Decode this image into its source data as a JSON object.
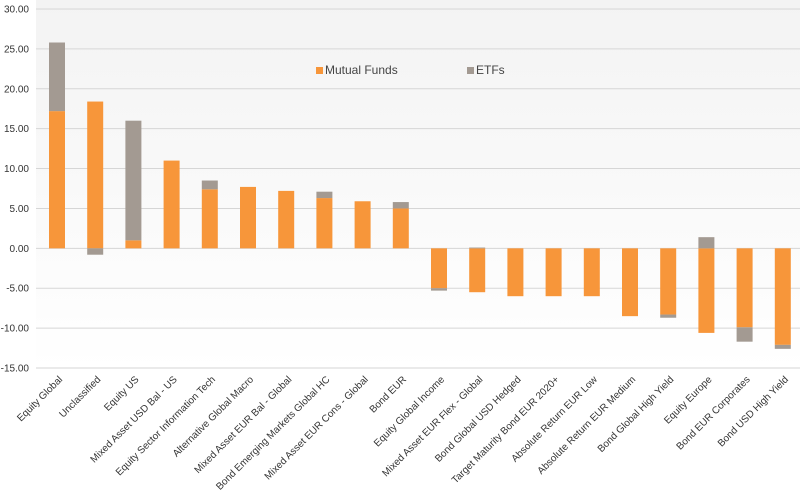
{
  "colors": {
    "mutual_funds": "#f7963a",
    "etfs": "#a39a92",
    "grid": "#d6d6d6",
    "plot_top": "#f3f3f3",
    "plot_bottom": "#ffffff"
  },
  "chart_data": {
    "type": "bar",
    "stacked": true,
    "categories": [
      "Equity Global",
      "Unclassified",
      "Equity US",
      "Mixed Asset USD Bal - US",
      "Equity Sector Information Tech",
      "Alternative Global Macro",
      "Mixed Asset EUR Bal - Global",
      "Bond Emerging Markets Global HC",
      "Mixed Asset EUR Cons - Global",
      "Bond EUR",
      "Equity Global Income",
      "Mixed Asset EUR Flex - Global",
      "Bond Global USD Hedged",
      "Target Maturity Bond EUR 2020+",
      "Absolute Return EUR Low",
      "Absolute Return EUR Medium",
      "Bond Global High Yield",
      "Equity Europe",
      "Bond EUR Corporates",
      "Bond USD High Yield"
    ],
    "series": [
      {
        "name": "Mutual Funds",
        "values": [
          17.2,
          18.4,
          1.0,
          11.0,
          7.4,
          7.7,
          7.2,
          6.3,
          5.9,
          5.0,
          -5.0,
          -5.5,
          -6.0,
          -6.0,
          -6.0,
          -8.5,
          -8.3,
          -10.6,
          -9.9,
          -12.1
        ]
      },
      {
        "name": "ETFs",
        "values": [
          8.6,
          -0.8,
          15.0,
          0.0,
          1.1,
          0.0,
          0.0,
          0.8,
          0.0,
          0.8,
          -0.3,
          0.1,
          0.0,
          0.0,
          0.0,
          0.0,
          -0.4,
          1.4,
          -1.8,
          -0.5
        ]
      }
    ],
    "yticks": [
      "30.00",
      "25.00",
      "20.00",
      "15.00",
      "10.00",
      "5.00",
      "0.00",
      "-5.00",
      "-10.00",
      "-15.00"
    ],
    "ylim": [
      -15,
      30
    ],
    "grid": true,
    "legend_position": "top-center"
  }
}
